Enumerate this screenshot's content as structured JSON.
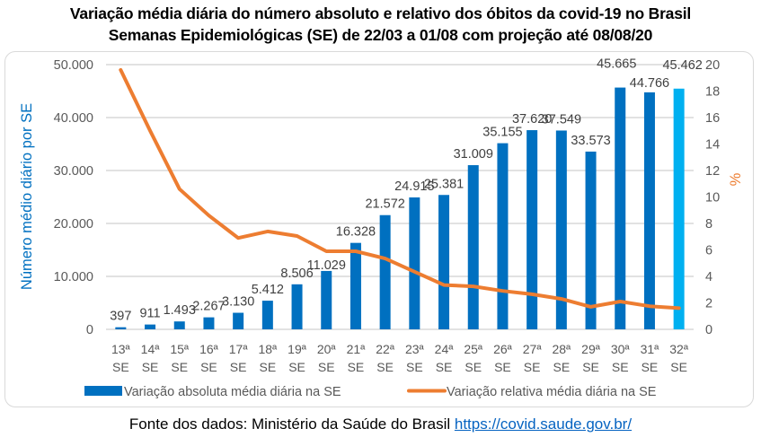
{
  "title_line1": "Variação média diária do número absoluto e relativo dos óbitos da covid-19 no Brasil",
  "title_line2": "Semanas Epidemiológicas (SE) de 22/03 a 01/08 com projeção até 08/08/20",
  "source": {
    "prefix": "Fonte dos dados: Ministério da Saúde do Brasil",
    "link_text": "https://covid.saude.gov.br/"
  },
  "chart_data": {
    "type": "bar",
    "title": "Variação média diária do número absoluto e relativo dos óbitos da covid-19 no Brasil — Semanas Epidemiológicas (SE) de 22/03 a 01/08 com projeção até 08/08/20",
    "categories": [
      {
        "line1": "13ª",
        "line2": "SE"
      },
      {
        "line1": "14ª",
        "line2": "SE"
      },
      {
        "line1": "15ª",
        "line2": "SE"
      },
      {
        "line1": "16ª",
        "line2": "SE"
      },
      {
        "line1": "17ª",
        "line2": "SE"
      },
      {
        "line1": "18ª",
        "line2": "SE"
      },
      {
        "line1": "19ª",
        "line2": "SE"
      },
      {
        "line1": "20ª",
        "line2": "SE"
      },
      {
        "line1": "21ª",
        "line2": "SE"
      },
      {
        "line1": "22ª",
        "line2": "SE"
      },
      {
        "line1": "23ª",
        "line2": "SE"
      },
      {
        "line1": "24ª",
        "line2": "SE"
      },
      {
        "line1": "25ª",
        "line2": "SE"
      },
      {
        "line1": "26ª",
        "line2": "SE"
      },
      {
        "line1": "27ª",
        "line2": "SE"
      },
      {
        "line1": "28ª",
        "line2": "SE"
      },
      {
        "line1": "29ª",
        "line2": "SE"
      },
      {
        "line1": "30ª",
        "line2": "SE"
      },
      {
        "line1": "31ª",
        "line2": "SE"
      },
      {
        "line1": "32ª",
        "line2": "SE"
      }
    ],
    "series": [
      {
        "name": "Variação absoluta média diária na SE",
        "type": "bar",
        "axis": "left",
        "color": "#0070c0",
        "projection_color": "#00b0f0",
        "projection_index": 19,
        "values": [
          397,
          911,
          1493,
          2267,
          3130,
          5412,
          8506,
          11029,
          16328,
          21572,
          24915,
          25381,
          31009,
          35155,
          37620,
          37549,
          33573,
          45665,
          44766,
          45462
        ],
        "labels": [
          "397",
          "911",
          "1.493",
          "2.267",
          "3.130",
          "5.412",
          "8.506",
          "11.029",
          "16.328",
          "21.572",
          "24.915",
          "25.381",
          "31.009",
          "35.155",
          "37.620",
          "37.549",
          "33.573",
          "45.665",
          "44.766",
          "45.462"
        ]
      },
      {
        "name": "Variação relativa média diária na SE",
        "type": "line",
        "axis": "right",
        "color": "#ed7d31",
        "values": [
          19.6,
          15.0,
          10.6,
          8.6,
          6.9,
          7.4,
          7.05,
          5.9,
          5.9,
          5.35,
          4.35,
          3.35,
          3.25,
          2.9,
          2.65,
          2.3,
          1.7,
          2.1,
          1.75,
          1.6
        ]
      }
    ],
    "ylabel": "Número médio diário por SE",
    "ylabel_color": "#0070c0",
    "y2label": "%",
    "y2label_color": "#ed7d31",
    "ylim": [
      0,
      50000
    ],
    "y2lim": [
      0,
      20
    ],
    "yticks": [
      "0",
      "10.000",
      "20.000",
      "30.000",
      "40.000",
      "50.000"
    ],
    "y2ticks": [
      "0",
      "2",
      "4",
      "6",
      "8",
      "10",
      "12",
      "14",
      "16",
      "18",
      "20"
    ],
    "grid": true,
    "legend_position": "bottom"
  }
}
